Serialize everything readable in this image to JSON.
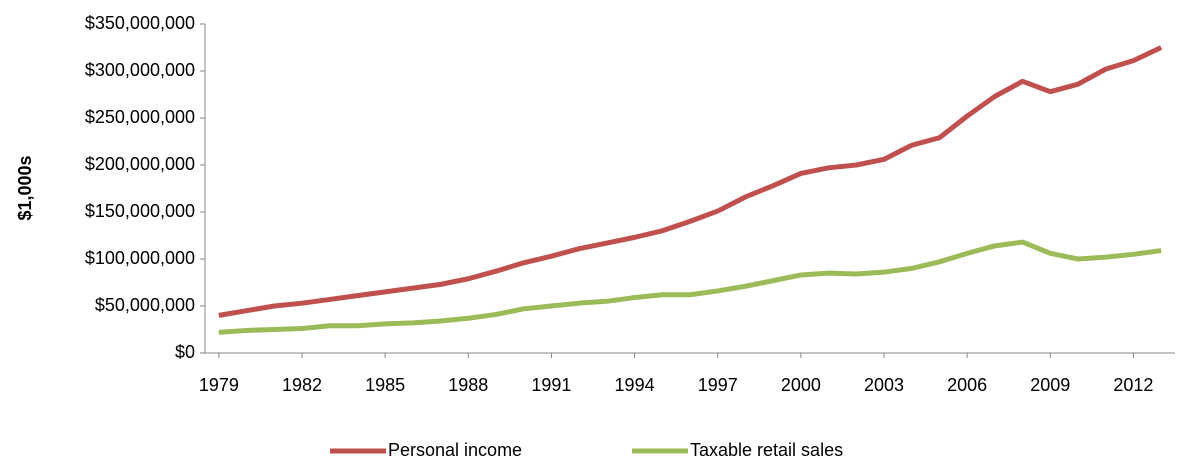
{
  "chart_data": {
    "type": "line",
    "y_label": "$1,000s",
    "x": [
      1979,
      1980,
      1981,
      1982,
      1983,
      1984,
      1985,
      1986,
      1987,
      1988,
      1989,
      1990,
      1991,
      1992,
      1993,
      1994,
      1995,
      1996,
      1997,
      1998,
      1999,
      2000,
      2001,
      2002,
      2003,
      2004,
      2005,
      2006,
      2007,
      2008,
      2009,
      2010,
      2011,
      2012,
      2013
    ],
    "series": [
      {
        "name": "Personal income",
        "color": "#c0504d",
        "values": [
          40000000,
          45000000,
          50000000,
          53000000,
          57000000,
          61000000,
          65000000,
          69000000,
          73000000,
          79000000,
          87000000,
          96000000,
          103000000,
          111000000,
          117000000,
          123000000,
          130000000,
          140000000,
          151000000,
          166000000,
          178000000,
          191000000,
          197000000,
          200000000,
          206000000,
          221000000,
          229000000,
          252000000,
          273000000,
          289000000,
          278000000,
          286000000,
          302000000,
          311000000,
          325000000
        ]
      },
      {
        "name": "Taxable retail sales",
        "color": "#9bbb59",
        "values": [
          22000000,
          24000000,
          25000000,
          26000000,
          29000000,
          29000000,
          31000000,
          32000000,
          34000000,
          37000000,
          41000000,
          47000000,
          50000000,
          53000000,
          55000000,
          59000000,
          62000000,
          62000000,
          66000000,
          71000000,
          77000000,
          83000000,
          85000000,
          84000000,
          86000000,
          90000000,
          97000000,
          106000000,
          114000000,
          118000000,
          106000000,
          100000000,
          102000000,
          105000000,
          109000000
        ]
      }
    ],
    "xlim": [
      1978.5,
      2013.5
    ],
    "xticks": [
      1979,
      1982,
      1985,
      1988,
      1991,
      1994,
      1997,
      2000,
      2003,
      2006,
      2009,
      2012
    ],
    "ylim": [
      0,
      350000000
    ],
    "yticks": [
      {
        "value": 0,
        "label": "$0"
      },
      {
        "value": 50000000,
        "label": "$50,000,000"
      },
      {
        "value": 100000000,
        "label": "$100,000,000"
      },
      {
        "value": 150000000,
        "label": "$150,000,000"
      },
      {
        "value": 200000000,
        "label": "$200,000,000"
      },
      {
        "value": 250000000,
        "label": "$250,000,000"
      },
      {
        "value": 300000000,
        "label": "$300,000,000"
      },
      {
        "value": 350000000,
        "label": "$350,000,000"
      }
    ],
    "grid": false,
    "legend": "bottom"
  }
}
